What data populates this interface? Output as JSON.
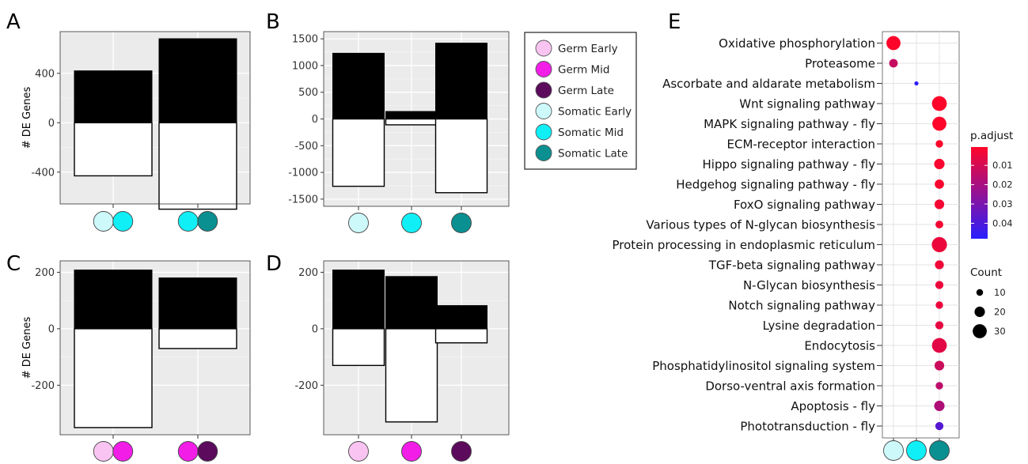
{
  "colors": {
    "germ_early": "#f9c4f2",
    "germ_mid": "#f21ee8",
    "germ_late": "#5c0a5c",
    "somatic_early": "#cdf9fb",
    "somatic_mid": "#10eff5",
    "somatic_late": "#0a9090",
    "up_bar": "#000000",
    "down_bar": "#ffffff",
    "panel_bg": "#ebebeb"
  },
  "chart_data": [
    {
      "id": "A",
      "letter": "A",
      "type": "bar",
      "ylabel": "# DE Genes",
      "yticks": [
        -400,
        0,
        400
      ],
      "ylim": [
        -600,
        680
      ],
      "groups": [
        {
          "markers": [
            "somatic_early",
            "somatic_mid"
          ],
          "up": 420,
          "down": -430
        },
        {
          "markers": [
            "somatic_mid",
            "somatic_late"
          ],
          "up": 680,
          "down": -700
        }
      ]
    },
    {
      "id": "B",
      "letter": "B",
      "type": "bar",
      "ylabel": "",
      "yticks": [
        -1500,
        -1000,
        -500,
        0,
        500,
        1000,
        1500
      ],
      "ylim": [
        -1500,
        1500
      ],
      "groups": [
        {
          "markers": [
            "somatic_early"
          ],
          "up": 1230,
          "down": -1260
        },
        {
          "markers": [
            "somatic_mid"
          ],
          "up": 140,
          "down": -110
        },
        {
          "markers": [
            "somatic_late"
          ],
          "up": 1420,
          "down": -1380
        }
      ]
    },
    {
      "id": "C",
      "letter": "C",
      "type": "bar",
      "ylabel": "# DE Genes",
      "yticks": [
        -200,
        0,
        200
      ],
      "ylim": [
        -350,
        215
      ],
      "groups": [
        {
          "markers": [
            "germ_early",
            "germ_mid"
          ],
          "up": 208,
          "down": -350
        },
        {
          "markers": [
            "germ_mid",
            "germ_late"
          ],
          "up": 180,
          "down": -70
        }
      ]
    },
    {
      "id": "D",
      "letter": "D",
      "type": "bar",
      "ylabel": "",
      "yticks": [
        -200,
        0,
        200
      ],
      "ylim": [
        -350,
        215
      ],
      "groups": [
        {
          "markers": [
            "germ_early"
          ],
          "up": 208,
          "down": -130
        },
        {
          "markers": [
            "germ_mid"
          ],
          "up": 185,
          "down": -330
        },
        {
          "markers": [
            "germ_late"
          ],
          "up": 82,
          "down": -50
        }
      ]
    },
    {
      "id": "E",
      "letter": "E",
      "type": "scatter",
      "columns": [
        "somatic_early",
        "somatic_mid",
        "somatic_late"
      ],
      "color_legend": {
        "title": "p.adjust",
        "ticks": [
          0.01,
          0.02,
          0.03,
          0.04
        ],
        "range": [
          0.0005,
          0.048
        ]
      },
      "size_legend": {
        "title": "Count",
        "values": [
          10,
          20,
          30
        ]
      },
      "pathways": [
        {
          "name": "Oxidative   phosphorylation",
          "col": 0,
          "count": 30,
          "padj": 0.001
        },
        {
          "name": "Proteasome",
          "col": 0,
          "count": 15,
          "padj": 0.013
        },
        {
          "name": "Ascorbate and  aldarate metabolism",
          "col": 1,
          "count": 3,
          "padj": 0.047
        },
        {
          "name": "Wnt  signaling pathway",
          "col": 2,
          "count": 32,
          "padj": 0.001
        },
        {
          "name": "MAPK  signaling pathway - fly",
          "col": 2,
          "count": 30,
          "padj": 0.001
        },
        {
          "name": "ECM-receptor    interaction",
          "col": 2,
          "count": 12,
          "padj": 0.001
        },
        {
          "name": "Hippo signaling pathway -  fly",
          "col": 2,
          "count": 20,
          "padj": 0.002
        },
        {
          "name": "Hedgehog signaling pathway -  fly",
          "col": 2,
          "count": 17,
          "padj": 0.002
        },
        {
          "name": "FoxO   signaling pathway",
          "col": 2,
          "count": 18,
          "padj": 0.003
        },
        {
          "name": "Various types of  N-glycan biosynthesis",
          "col": 2,
          "count": 13,
          "padj": 0.003
        },
        {
          "name": "Protein processing in  endoplasmic reticulum",
          "col": 2,
          "count": 33,
          "padj": 0.005
        },
        {
          "name": "TGF-beta  signaling pathway",
          "col": 2,
          "count": 16,
          "padj": 0.004
        },
        {
          "name": "N-Glycan   biosynthesis",
          "col": 2,
          "count": 14,
          "padj": 0.005
        },
        {
          "name": "Notch  signaling pathway",
          "col": 2,
          "count": 12,
          "padj": 0.005
        },
        {
          "name": "Lysine   degradation",
          "col": 2,
          "count": 14,
          "padj": 0.006
        },
        {
          "name": "Endocytosis",
          "col": 2,
          "count": 32,
          "padj": 0.007
        },
        {
          "name": "Phosphatidylinositol signaling   system",
          "col": 2,
          "count": 18,
          "padj": 0.012
        },
        {
          "name": "Dorso-ventral axis   formation",
          "col": 2,
          "count": 12,
          "padj": 0.015
        },
        {
          "name": "Apoptosis -  fly",
          "col": 2,
          "count": 20,
          "padj": 0.018
        },
        {
          "name": "Phototransduction - fly",
          "col": 2,
          "count": 14,
          "padj": 0.038
        }
      ]
    }
  ],
  "legend": {
    "items": [
      {
        "key": "germ_early",
        "label": "Germ Early"
      },
      {
        "key": "germ_mid",
        "label": "Germ Mid"
      },
      {
        "key": "germ_late",
        "label": "Germ Late"
      },
      {
        "key": "somatic_early",
        "label": "Somatic Early"
      },
      {
        "key": "somatic_mid",
        "label": "Somatic Mid"
      },
      {
        "key": "somatic_late",
        "label": "Somatic Late"
      }
    ]
  }
}
